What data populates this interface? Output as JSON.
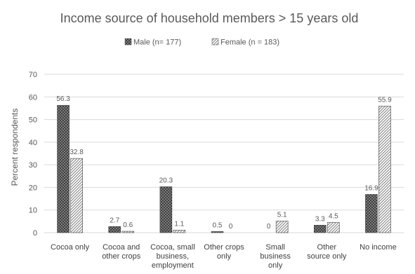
{
  "chart_data": {
    "type": "bar",
    "title": "Income source of household members > 15 years old",
    "ylabel": "Percent respondents",
    "xlabel": "",
    "ylim": [
      0,
      70
    ],
    "yticks": [
      0,
      10,
      20,
      30,
      40,
      50,
      60,
      70
    ],
    "grid": true,
    "legend_position": "top",
    "categories": [
      [
        "Cocoa only"
      ],
      [
        "Cocoa and",
        "other crops"
      ],
      [
        "Cocoa, small",
        "business,",
        "employment"
      ],
      [
        "Other crops",
        "only"
      ],
      [
        "Small",
        "business",
        "only"
      ],
      [
        "Other",
        "source only"
      ],
      [
        "No income"
      ]
    ],
    "series": [
      {
        "name": "Male (n= 177)",
        "values": [
          56.3,
          2.7,
          20.3,
          0.5,
          0,
          3.3,
          16.9
        ],
        "labels": [
          "56.3",
          "2.7",
          "20.3",
          "0.5",
          "0",
          "3.3",
          "16.9"
        ],
        "pattern": "dark-crosshatch"
      },
      {
        "name": "Female (n = 183)",
        "values": [
          32.8,
          0.6,
          1.1,
          0,
          5.1,
          4.5,
          55.9
        ],
        "labels": [
          "32.8",
          "0.6",
          "1.1",
          "0",
          "5.1",
          "4.5",
          "55.9"
        ],
        "pattern": "light-diagonal"
      }
    ],
    "colors": {
      "male_fill": "#3a3a3a",
      "female_fill": "#d9d9d9",
      "grid": "#d9d9d9",
      "text": "#595959"
    }
  }
}
